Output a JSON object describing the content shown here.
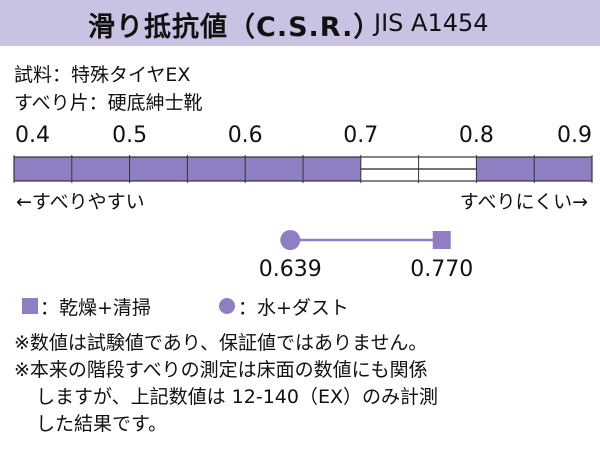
{
  "title": "滑り抵抗値（C.S.R.）",
  "standard": "JIS A1454",
  "sample_line": "試料：特殊タイヤEX",
  "slider_line": "すべり片：硬底紳士靴",
  "direction_left": "←すべりやすい",
  "direction_right": "すべりにくい→",
  "legend": {
    "dry_label": "：乾燥+清掃",
    "wet_label": "：水+ダスト"
  },
  "notes": [
    "※数値は試験値であり、保証値ではありません。",
    "※本来の階段すべりの測定は床面の数値にも関係",
    "しますが、上記数値は 12-140（EX）のみ計測",
    "した結果です。"
  ],
  "colors": {
    "accent": "#8f7fc2",
    "title_bg": "#c9c2e2"
  },
  "chart_data": {
    "type": "scatter",
    "title": "滑り抵抗値（C.S.R.）",
    "x_ticks": [
      "0.4",
      "0.5",
      "0.6",
      "0.7",
      "0.8",
      "0.9"
    ],
    "xlim": [
      0.4,
      0.9
    ],
    "series": [
      {
        "name": "水+ダスト",
        "marker": "circle",
        "x": 0.639,
        "label": "0.639"
      },
      {
        "name": "乾燥+清掃",
        "marker": "square",
        "x": 0.77,
        "label": "0.770"
      }
    ],
    "highlight_segments": [
      [
        0.4,
        0.7
      ],
      [
        0.8,
        0.9
      ]
    ]
  }
}
